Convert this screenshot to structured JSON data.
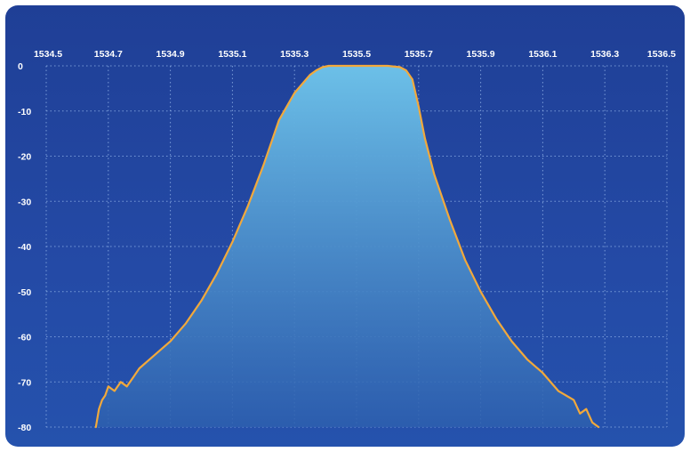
{
  "chart_data": {
    "type": "area",
    "title": "",
    "xlabel": "",
    "ylabel": "",
    "xlim": [
      1534.5,
      1536.5
    ],
    "ylim": [
      -80,
      0
    ],
    "x_ticks": [
      "1534.5",
      "1534.7",
      "1534.9",
      "1535.1",
      "1535.3",
      "1535.5",
      "1535.7",
      "1535.9",
      "1536.1",
      "1536.3",
      "1536.5"
    ],
    "y_ticks": [
      "0",
      "-10",
      "-20",
      "-30",
      "-40",
      "-50",
      "-60",
      "-70",
      "-80"
    ],
    "x_axis_position": "top",
    "grid": true,
    "colors": {
      "line": "#f2a93b",
      "fill_top": "#6cc0e8",
      "fill_bottom": "#2d5fae",
      "background": "#22479f",
      "grid": "#8fb0e6"
    },
    "series": [
      {
        "x": [
          1534.66,
          1534.67,
          1534.68,
          1534.69,
          1534.7,
          1534.72,
          1534.74,
          1534.76,
          1534.78,
          1534.8,
          1534.85,
          1534.9,
          1534.95,
          1535.0,
          1535.05,
          1535.1,
          1535.15,
          1535.2,
          1535.25,
          1535.3,
          1535.35,
          1535.37,
          1535.39,
          1535.41,
          1535.43,
          1535.5,
          1535.6,
          1535.64,
          1535.66,
          1535.68,
          1535.7,
          1535.72,
          1535.75,
          1535.8,
          1535.85,
          1535.9,
          1535.95,
          1536.0,
          1536.05,
          1536.1,
          1536.15,
          1536.2,
          1536.22,
          1536.24,
          1536.26,
          1536.28
        ],
        "y": [
          -80,
          -76,
          -74,
          -73,
          -71,
          -72,
          -70,
          -71,
          -69,
          -67,
          -64,
          -61,
          -57,
          -52,
          -46,
          -39,
          -31,
          -22,
          -12,
          -6,
          -2,
          -1,
          -0.3,
          0,
          0,
          0,
          0,
          -0.3,
          -1,
          -3,
          -9,
          -16,
          -24,
          -34,
          -43,
          -50,
          -56,
          -61,
          -65,
          -68,
          -72,
          -74,
          -77,
          -76,
          -79,
          -80
        ]
      }
    ]
  }
}
